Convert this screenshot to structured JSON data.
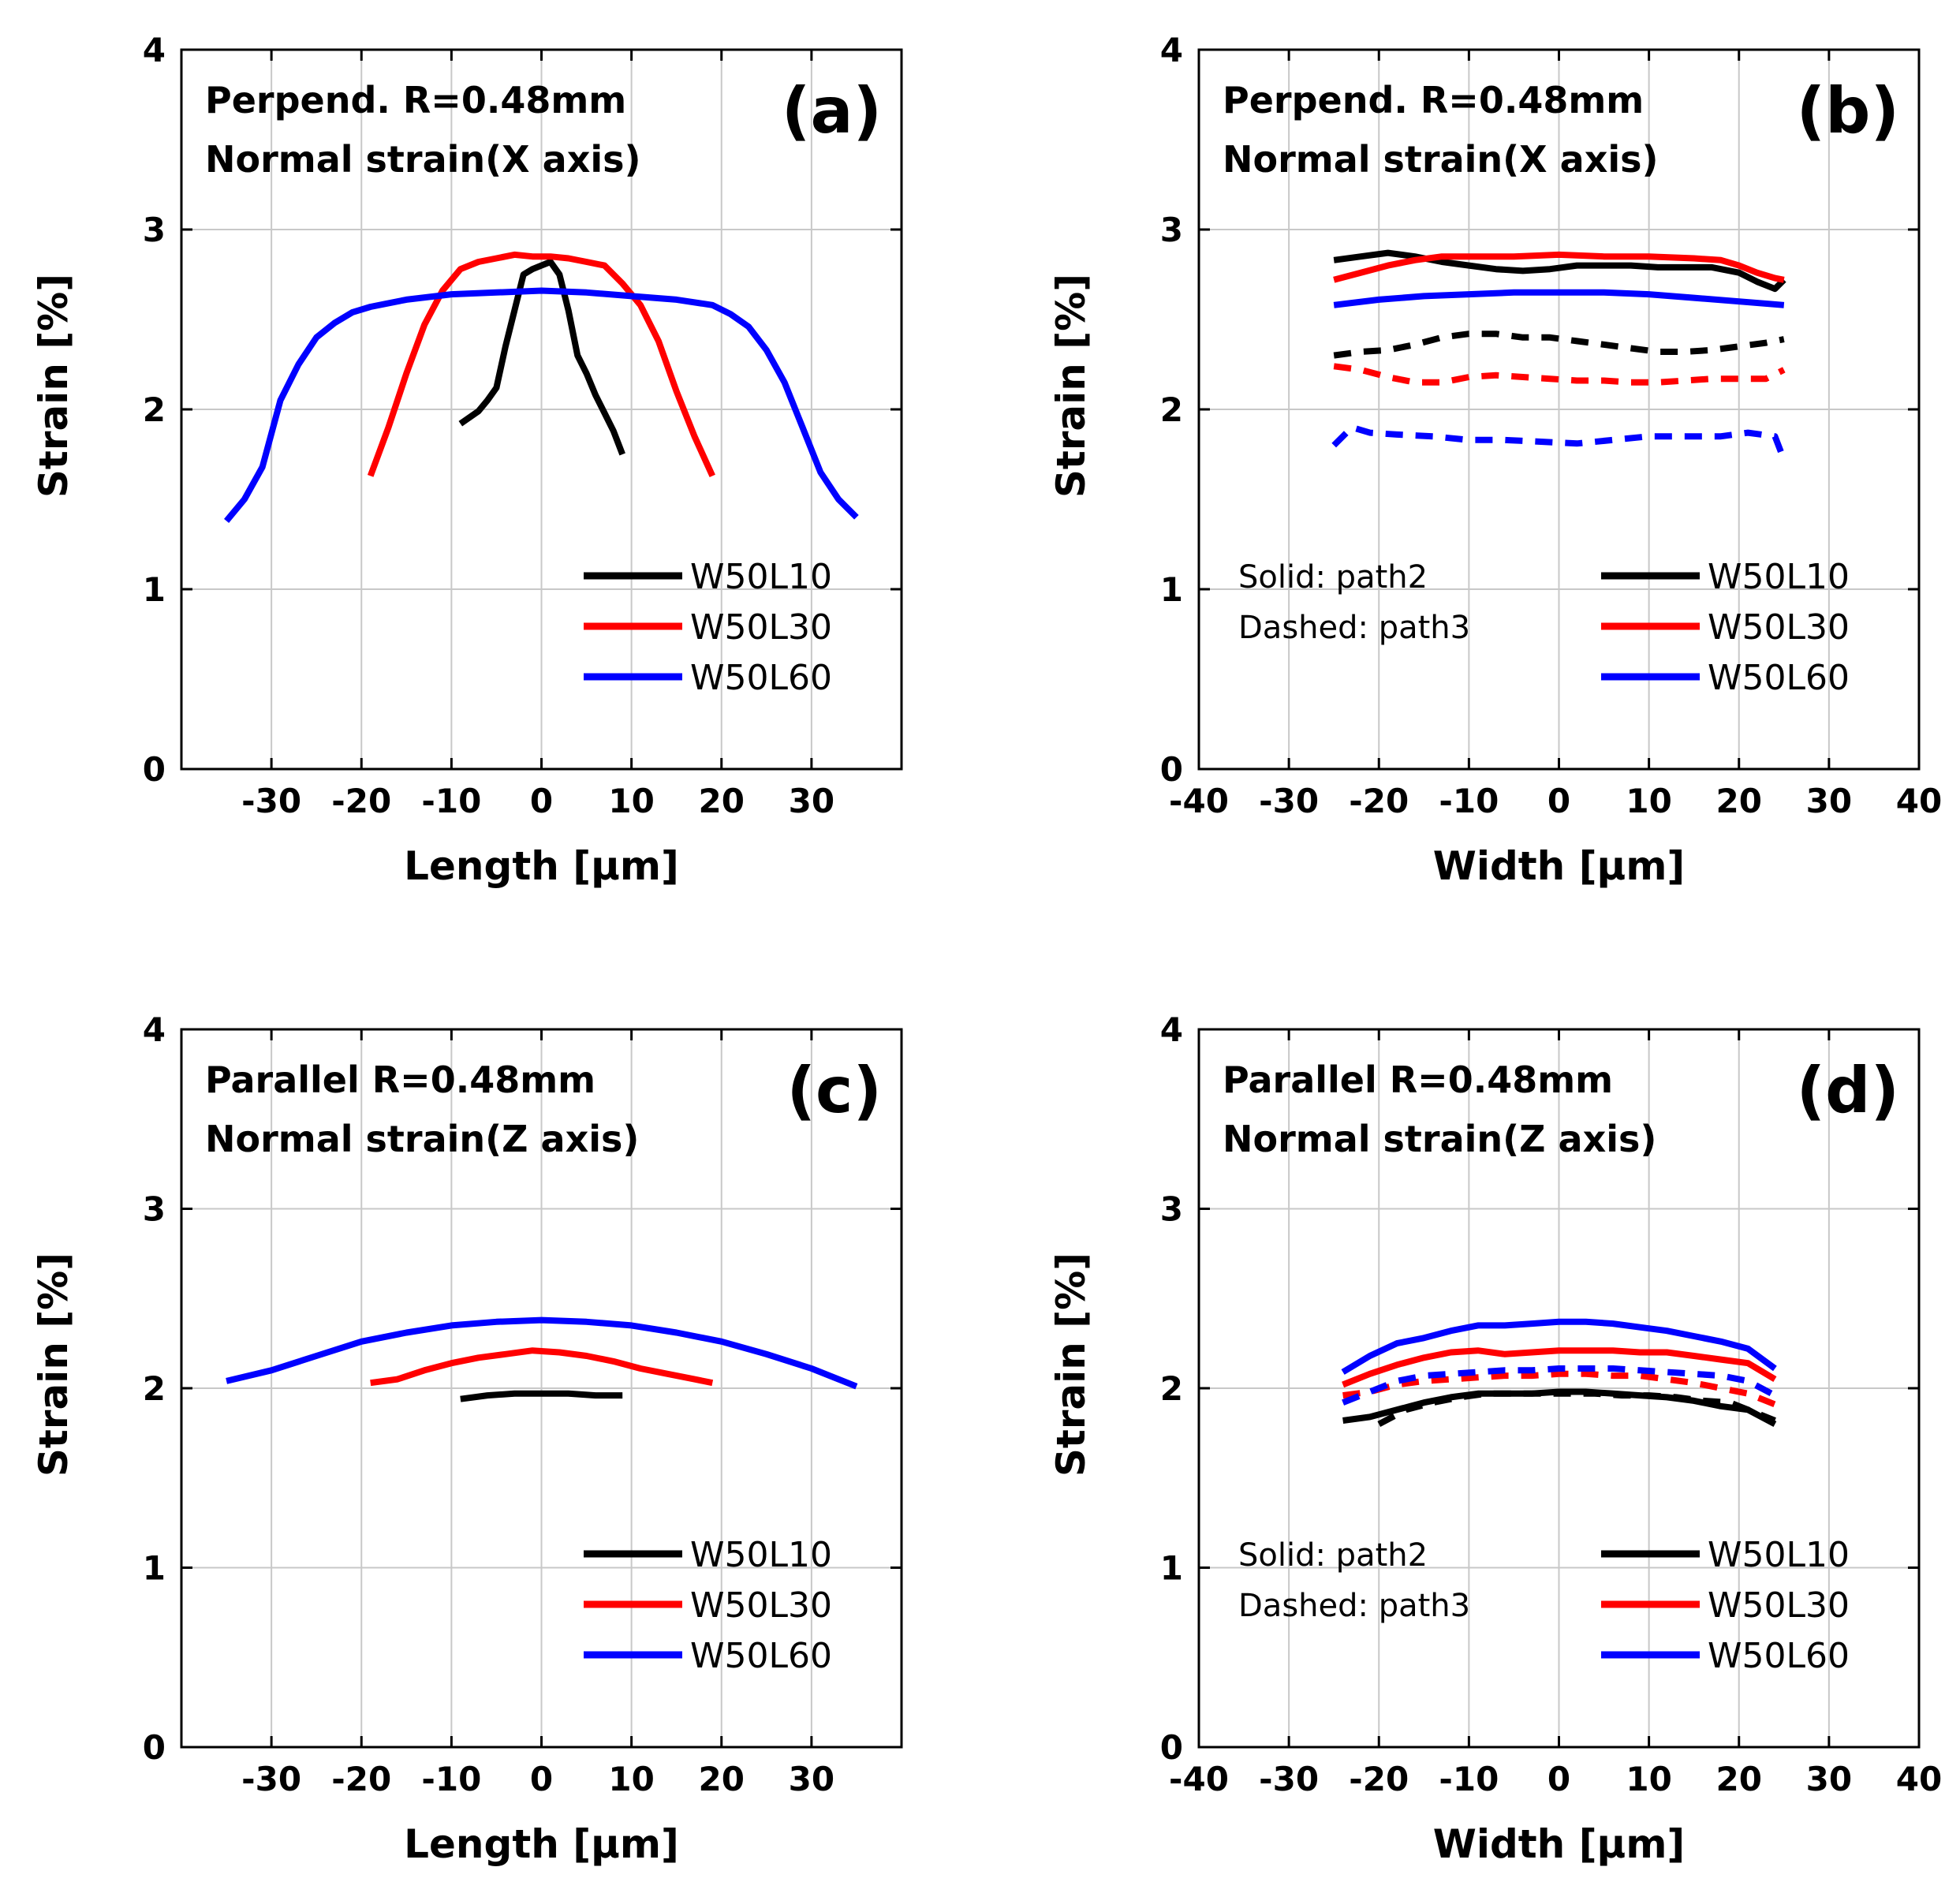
{
  "figure": {
    "background": "#ffffff"
  },
  "colors": {
    "W50L10": "#000000",
    "W50L30": "#ff0000",
    "W50L60": "#0000ff",
    "grid": "#c8c8c8"
  },
  "chart_data": [
    {
      "id": "a",
      "type": "line",
      "panel_label": "(a)",
      "title_lines": [
        "Perpend. R=0.48mm",
        "Normal strain(X axis)"
      ],
      "xlabel": "Length [µm]",
      "ylabel": "Strain [%]",
      "xlim": [
        -40,
        40
      ],
      "ylim": [
        0,
        4
      ],
      "xticks": [
        -30,
        -20,
        -10,
        0,
        10,
        20,
        30
      ],
      "xtick_labels": [
        "-30",
        "-20",
        "-10",
        "0",
        "10",
        "20",
        "30"
      ],
      "yticks": [
        0,
        1,
        2,
        3,
        4
      ],
      "ytick_labels": [
        "0",
        "1",
        "2",
        "3",
        "4"
      ],
      "grid": true,
      "legend": {
        "position": "bottom-right",
        "entries": [
          "W50L10",
          "W50L30",
          "W50L60"
        ]
      },
      "series": [
        {
          "name": "W50L10",
          "color": "#000000",
          "dash": "solid",
          "x": [
            -9,
            -7,
            -6,
            -5,
            -4,
            -3,
            -2,
            -1,
            0,
            1,
            2,
            3,
            4,
            5,
            6,
            7,
            8,
            9
          ],
          "y": [
            1.92,
            1.99,
            2.05,
            2.12,
            2.35,
            2.55,
            2.75,
            2.78,
            2.8,
            2.82,
            2.75,
            2.55,
            2.3,
            2.2,
            2.08,
            1.98,
            1.88,
            1.75
          ]
        },
        {
          "name": "W50L30",
          "color": "#ff0000",
          "dash": "solid",
          "x": [
            -19,
            -17,
            -15,
            -13,
            -11,
            -9,
            -7,
            -5,
            -3,
            -1,
            1,
            3,
            5,
            7,
            9,
            11,
            13,
            15,
            17,
            19
          ],
          "y": [
            1.63,
            1.9,
            2.2,
            2.47,
            2.66,
            2.78,
            2.82,
            2.84,
            2.86,
            2.85,
            2.85,
            2.84,
            2.82,
            2.8,
            2.7,
            2.58,
            2.38,
            2.1,
            1.85,
            1.63
          ]
        },
        {
          "name": "W50L60",
          "color": "#0000ff",
          "dash": "solid",
          "x": [
            -35,
            -33,
            -31,
            -29,
            -27,
            -25,
            -23,
            -21,
            -19,
            -15,
            -10,
            -5,
            0,
            5,
            10,
            15,
            19,
            21,
            23,
            25,
            27,
            29,
            31,
            33,
            35
          ],
          "y": [
            1.38,
            1.5,
            1.68,
            2.05,
            2.25,
            2.4,
            2.48,
            2.54,
            2.57,
            2.61,
            2.64,
            2.65,
            2.66,
            2.65,
            2.63,
            2.61,
            2.58,
            2.53,
            2.46,
            2.33,
            2.15,
            1.9,
            1.65,
            1.5,
            1.4
          ]
        }
      ]
    },
    {
      "id": "b",
      "type": "line",
      "panel_label": "(b)",
      "title_lines": [
        "Perpend. R=0.48mm",
        "Normal strain(X axis)"
      ],
      "xlabel": "Width [µm]",
      "ylabel": "Strain [%]",
      "xlim": [
        -40,
        40
      ],
      "ylim": [
        0,
        4
      ],
      "xticks": [
        -40,
        -30,
        -20,
        -10,
        0,
        10,
        20,
        30,
        40
      ],
      "xtick_labels": [
        "-40",
        "-30",
        "-20",
        "-10",
        "0",
        "10",
        "20",
        "30",
        "40"
      ],
      "yticks": [
        0,
        1,
        2,
        3,
        4
      ],
      "ytick_labels": [
        "0",
        "1",
        "2",
        "3",
        "4"
      ],
      "grid": true,
      "notes": [
        "Solid: path2",
        "Dashed: path3"
      ],
      "legend": {
        "position": "bottom-right",
        "entries": [
          "W50L10",
          "W50L30",
          "W50L60"
        ]
      },
      "series": [
        {
          "name": "W50L10",
          "path": "path2",
          "color": "#000000",
          "dash": "solid",
          "x": [
            -25,
            -22,
            -19,
            -16,
            -13,
            -10,
            -7,
            -4,
            -1,
            2,
            5,
            8,
            11,
            14,
            17,
            20,
            22,
            24,
            25
          ],
          "y": [
            2.83,
            2.85,
            2.87,
            2.85,
            2.82,
            2.8,
            2.78,
            2.77,
            2.78,
            2.8,
            2.8,
            2.8,
            2.79,
            2.79,
            2.79,
            2.76,
            2.71,
            2.67,
            2.72
          ]
        },
        {
          "name": "W50L30",
          "path": "path2",
          "color": "#ff0000",
          "dash": "solid",
          "x": [
            -25,
            -22,
            -19,
            -16,
            -13,
            -10,
            -5,
            0,
            5,
            10,
            15,
            18,
            20,
            22,
            24,
            25
          ],
          "y": [
            2.72,
            2.76,
            2.8,
            2.83,
            2.85,
            2.85,
            2.85,
            2.86,
            2.85,
            2.85,
            2.84,
            2.83,
            2.8,
            2.76,
            2.73,
            2.72
          ]
        },
        {
          "name": "W50L60",
          "path": "path2",
          "color": "#0000ff",
          "dash": "solid",
          "x": [
            -25,
            -20,
            -15,
            -10,
            -5,
            0,
            5,
            10,
            15,
            20,
            25
          ],
          "y": [
            2.58,
            2.61,
            2.63,
            2.64,
            2.65,
            2.65,
            2.65,
            2.64,
            2.62,
            2.6,
            2.58
          ]
        },
        {
          "name": "W50L10",
          "path": "path3",
          "color": "#000000",
          "dash": "dashed",
          "x": [
            -25,
            -22,
            -19,
            -16,
            -13,
            -10,
            -7,
            -4,
            -1,
            2,
            5,
            8,
            11,
            14,
            17,
            20,
            23,
            25
          ],
          "y": [
            2.3,
            2.32,
            2.33,
            2.36,
            2.4,
            2.42,
            2.42,
            2.4,
            2.4,
            2.38,
            2.36,
            2.34,
            2.32,
            2.32,
            2.33,
            2.35,
            2.37,
            2.39
          ]
        },
        {
          "name": "W50L30",
          "path": "path3",
          "color": "#ff0000",
          "dash": "dashed",
          "x": [
            -25,
            -22,
            -19,
            -16,
            -13,
            -10,
            -7,
            -4,
            -1,
            2,
            5,
            8,
            11,
            14,
            17,
            20,
            23,
            25
          ],
          "y": [
            2.24,
            2.22,
            2.18,
            2.15,
            2.15,
            2.18,
            2.19,
            2.18,
            2.17,
            2.16,
            2.16,
            2.15,
            2.15,
            2.16,
            2.17,
            2.17,
            2.17,
            2.22
          ]
        },
        {
          "name": "W50L60",
          "path": "path3",
          "color": "#0000ff",
          "dash": "dashed",
          "x": [
            -25,
            -23,
            -21,
            -18,
            -14,
            -10,
            -6,
            -2,
            2,
            6,
            10,
            14,
            18,
            21,
            24,
            25
          ],
          "y": [
            1.8,
            1.9,
            1.87,
            1.86,
            1.85,
            1.83,
            1.83,
            1.82,
            1.81,
            1.83,
            1.85,
            1.85,
            1.85,
            1.87,
            1.85,
            1.72
          ]
        }
      ]
    },
    {
      "id": "c",
      "type": "line",
      "panel_label": "(c)",
      "title_lines": [
        "Parallel R=0.48mm",
        "Normal strain(Z axis)"
      ],
      "xlabel": "Length [µm]",
      "ylabel": "Strain [%]",
      "xlim": [
        -40,
        40
      ],
      "ylim": [
        0,
        4
      ],
      "xticks": [
        -30,
        -20,
        -10,
        0,
        10,
        20,
        30
      ],
      "xtick_labels": [
        "-30",
        "-20",
        "-10",
        "0",
        "10",
        "20",
        "30"
      ],
      "yticks": [
        0,
        1,
        2,
        3,
        4
      ],
      "ytick_labels": [
        "0",
        "1",
        "2",
        "3",
        "4"
      ],
      "grid": true,
      "legend": {
        "position": "bottom-right",
        "entries": [
          "W50L10",
          "W50L30",
          "W50L60"
        ]
      },
      "series": [
        {
          "name": "W50L10",
          "color": "#000000",
          "dash": "solid",
          "x": [
            -9,
            -6,
            -3,
            0,
            3,
            6,
            9
          ],
          "y": [
            1.94,
            1.96,
            1.97,
            1.97,
            1.97,
            1.96,
            1.96
          ]
        },
        {
          "name": "W50L30",
          "color": "#ff0000",
          "dash": "solid",
          "x": [
            -19,
            -16,
            -13,
            -10,
            -7,
            -4,
            -1,
            2,
            5,
            8,
            11,
            14,
            17,
            19
          ],
          "y": [
            2.03,
            2.05,
            2.1,
            2.14,
            2.17,
            2.19,
            2.21,
            2.2,
            2.18,
            2.15,
            2.11,
            2.08,
            2.05,
            2.03
          ]
        },
        {
          "name": "W50L60",
          "color": "#0000ff",
          "dash": "solid",
          "x": [
            -35,
            -30,
            -25,
            -20,
            -15,
            -10,
            -5,
            0,
            5,
            10,
            15,
            20,
            25,
            30,
            35
          ],
          "y": [
            2.04,
            2.1,
            2.18,
            2.26,
            2.31,
            2.35,
            2.37,
            2.38,
            2.37,
            2.35,
            2.31,
            2.26,
            2.19,
            2.11,
            2.01
          ]
        }
      ]
    },
    {
      "id": "d",
      "type": "line",
      "panel_label": "(d)",
      "title_lines": [
        "Parallel R=0.48mm",
        "Normal strain(Z axis)"
      ],
      "xlabel": "Width [µm]",
      "ylabel": "Strain [%]",
      "xlim": [
        -40,
        40
      ],
      "ylim": [
        0,
        4
      ],
      "xticks": [
        -40,
        -30,
        -20,
        -10,
        0,
        10,
        20,
        30,
        40
      ],
      "xtick_labels": [
        "-40",
        "-30",
        "-20",
        "-10",
        "0",
        "10",
        "20",
        "30",
        "40"
      ],
      "yticks": [
        0,
        1,
        2,
        3,
        4
      ],
      "ytick_labels": [
        "0",
        "1",
        "2",
        "3",
        "4"
      ],
      "grid": true,
      "notes": [
        "Solid: path2",
        "Dashed: path3"
      ],
      "legend": {
        "position": "bottom-right",
        "entries": [
          "W50L10",
          "W50L30",
          "W50L60"
        ]
      },
      "series": [
        {
          "name": "W50L10",
          "path": "path2",
          "color": "#000000",
          "dash": "solid",
          "x": [
            -24,
            -21,
            -18,
            -15,
            -12,
            -9,
            -6,
            -3,
            0,
            3,
            6,
            9,
            12,
            15,
            18,
            21,
            24
          ],
          "y": [
            1.82,
            1.84,
            1.88,
            1.92,
            1.95,
            1.97,
            1.97,
            1.97,
            1.98,
            1.98,
            1.97,
            1.96,
            1.95,
            1.93,
            1.9,
            1.88,
            1.8
          ]
        },
        {
          "name": "W50L30",
          "path": "path2",
          "color": "#ff0000",
          "dash": "solid",
          "x": [
            -24,
            -21,
            -18,
            -15,
            -12,
            -9,
            -6,
            -3,
            0,
            3,
            6,
            9,
            12,
            15,
            18,
            21,
            24
          ],
          "y": [
            2.02,
            2.08,
            2.13,
            2.17,
            2.2,
            2.21,
            2.19,
            2.2,
            2.21,
            2.21,
            2.21,
            2.2,
            2.2,
            2.18,
            2.16,
            2.14,
            2.05
          ]
        },
        {
          "name": "W50L60",
          "path": "path2",
          "color": "#0000ff",
          "dash": "solid",
          "x": [
            -24,
            -21,
            -18,
            -15,
            -12,
            -9,
            -6,
            -3,
            0,
            3,
            6,
            9,
            12,
            15,
            18,
            21,
            24
          ],
          "y": [
            2.09,
            2.18,
            2.25,
            2.28,
            2.32,
            2.35,
            2.35,
            2.36,
            2.37,
            2.37,
            2.36,
            2.34,
            2.32,
            2.29,
            2.26,
            2.22,
            2.11
          ]
        },
        {
          "name": "W50L10",
          "path": "path3",
          "color": "#000000",
          "dash": "dashed",
          "x": [
            -20,
            -17,
            -14,
            -11,
            -8,
            -5,
            -2,
            1,
            4,
            7,
            10,
            13,
            16,
            19,
            22,
            24
          ],
          "y": [
            1.8,
            1.88,
            1.92,
            1.95,
            1.97,
            1.97,
            1.97,
            1.97,
            1.97,
            1.96,
            1.96,
            1.95,
            1.93,
            1.92,
            1.86,
            1.82
          ]
        },
        {
          "name": "W50L30",
          "path": "path3",
          "color": "#ff0000",
          "dash": "dashed",
          "x": [
            -24,
            -21,
            -18,
            -15,
            -12,
            -9,
            -6,
            -3,
            0,
            3,
            6,
            9,
            12,
            15,
            18,
            21,
            24
          ],
          "y": [
            1.96,
            1.98,
            2.02,
            2.04,
            2.05,
            2.06,
            2.07,
            2.07,
            2.08,
            2.08,
            2.07,
            2.07,
            2.05,
            2.03,
            2.0,
            1.97,
            1.91
          ]
        },
        {
          "name": "W50L60",
          "path": "path3",
          "color": "#0000ff",
          "dash": "dashed",
          "x": [
            -24,
            -21,
            -18,
            -15,
            -12,
            -9,
            -6,
            -3,
            0,
            3,
            6,
            9,
            12,
            15,
            18,
            21,
            24
          ],
          "y": [
            1.92,
            1.98,
            2.04,
            2.07,
            2.08,
            2.09,
            2.1,
            2.1,
            2.11,
            2.11,
            2.11,
            2.1,
            2.09,
            2.08,
            2.07,
            2.04,
            1.96
          ]
        }
      ]
    }
  ]
}
